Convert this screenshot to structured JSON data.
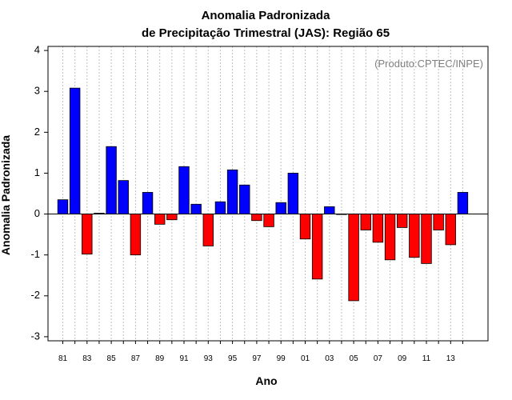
{
  "chart_data": {
    "type": "bar",
    "title": [
      "Anomalia Padronizada",
      "de Precipitação Trimestral (JAS): Região 65"
    ],
    "credit": "(Produto:CPTEC/INPE)",
    "xlabel": "Ano",
    "ylabel": "Anomalia Padronizada",
    "ylim": [
      -3.1,
      4.1
    ],
    "yticks": [
      -3,
      -2,
      -1,
      0,
      1,
      2,
      3,
      4
    ],
    "xtick_labels": [
      "81",
      "83",
      "85",
      "87",
      "89",
      "91",
      "93",
      "95",
      "97",
      "99",
      "01",
      "03",
      "05",
      "07",
      "09",
      "11",
      "13"
    ],
    "categories": [
      "1981",
      "1982",
      "1983",
      "1984",
      "1985",
      "1986",
      "1987",
      "1988",
      "1989",
      "1990",
      "1991",
      "1992",
      "1993",
      "1994",
      "1995",
      "1996",
      "1997",
      "1998",
      "1999",
      "2000",
      "2001",
      "2002",
      "2003",
      "2004",
      "2005",
      "2006",
      "2007",
      "2008",
      "2009",
      "2010",
      "2011",
      "2012",
      "2013",
      "2014"
    ],
    "values": [
      0.35,
      3.08,
      -0.98,
      0.02,
      1.65,
      0.82,
      -1.0,
      0.53,
      -0.25,
      -0.14,
      1.16,
      0.24,
      -0.78,
      0.3,
      1.08,
      0.71,
      -0.16,
      -0.31,
      0.28,
      1.0,
      -0.61,
      -1.59,
      0.18,
      0.0,
      -2.12,
      -0.39,
      -0.69,
      -1.12,
      -0.33,
      -1.06,
      -1.21,
      -0.39,
      -0.75,
      0.53
    ],
    "colors": {
      "positive": "#0000ff",
      "negative": "#ff0000",
      "grid": "#c0c0c0"
    },
    "grid": true
  }
}
